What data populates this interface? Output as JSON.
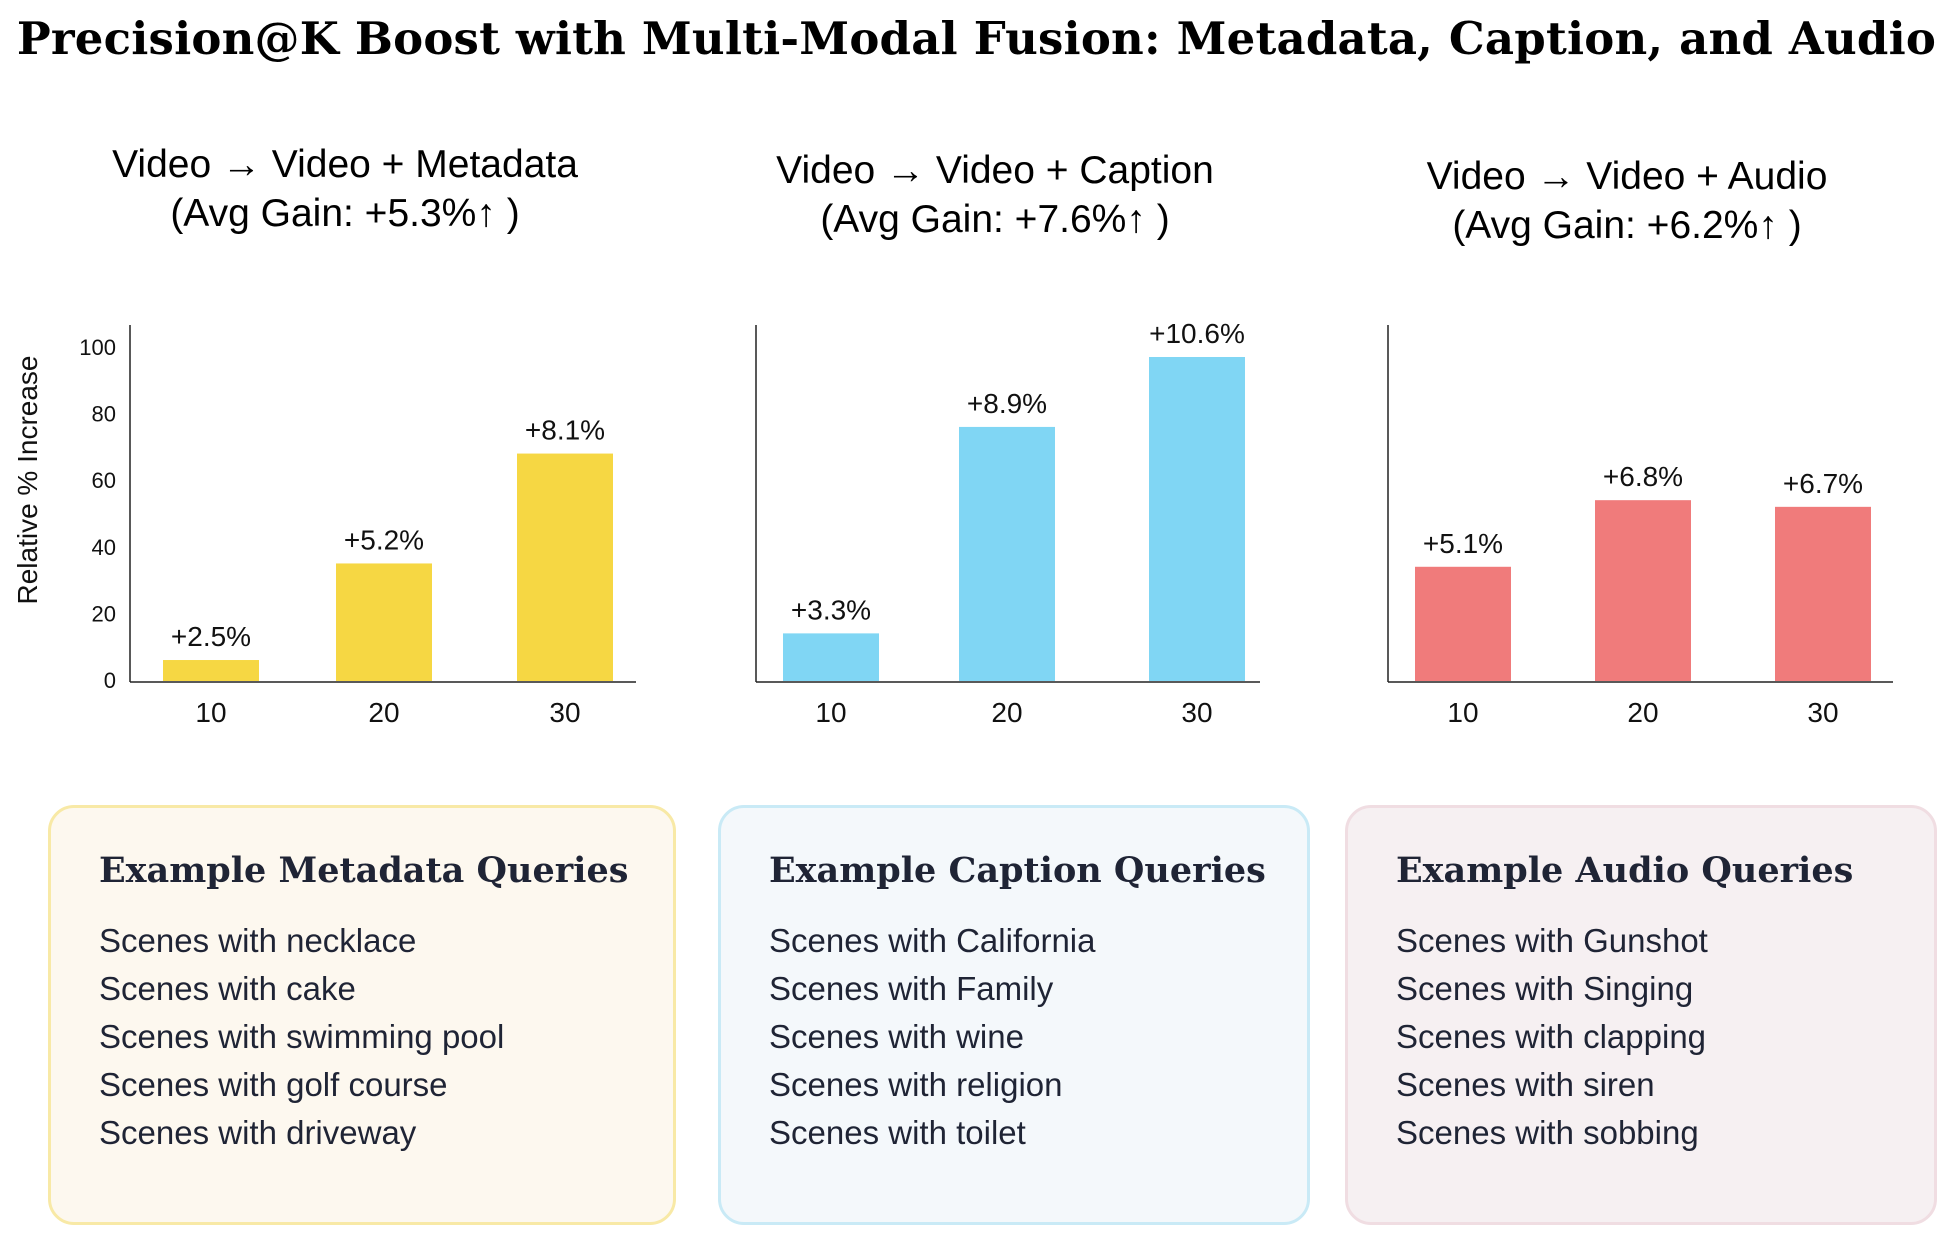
{
  "title": "Precision@K Boost with Multi-Modal Fusion: Metadata, Caption, and Audio",
  "chart_data": [
    {
      "type": "bar",
      "title_line1": "Video → Video + Metadata",
      "title_line2": "(Avg Gain: +5.3%↑ )",
      "ylabel": "Relative % Increase",
      "ylim": [
        0,
        100
      ],
      "yticks": [
        "0",
        "20",
        "40",
        "60",
        "80",
        "100"
      ],
      "categories": [
        "10",
        "20",
        "30"
      ],
      "values": [
        6,
        35,
        68
      ],
      "data_labels": [
        "+2.5%",
        "+5.2%",
        "+8.1%"
      ],
      "color": "#f6d743"
    },
    {
      "type": "bar",
      "title_line1": "Video → Video + Caption",
      "title_line2": "(Avg Gain: +7.6%↑ )",
      "ylim": [
        0,
        100
      ],
      "categories": [
        "10",
        "20",
        "30"
      ],
      "values": [
        14,
        76,
        97
      ],
      "data_labels": [
        "+3.3%",
        "+8.9%",
        "+10.6%"
      ],
      "color": "#80d6f4"
    },
    {
      "type": "bar",
      "title_line1": "Video → Video + Audio",
      "title_line2": "(Avg Gain: +6.2%↑ )",
      "ylim": [
        0,
        100
      ],
      "categories": [
        "10",
        "20",
        "30"
      ],
      "values": [
        34,
        54,
        52
      ],
      "data_labels": [
        "+5.1%",
        "+6.8%",
        "+6.7%"
      ],
      "color": "#f07b7b"
    }
  ],
  "examples": [
    {
      "heading": "Example Metadata Queries",
      "items": [
        "Scenes with necklace",
        "Scenes with cake",
        "Scenes with swimming pool",
        "Scenes with golf course",
        "Scenes with driveway"
      ],
      "background": "#fdf8ef",
      "border": "#f8e9a6"
    },
    {
      "heading": "Example Caption Queries",
      "items": [
        "Scenes with California",
        "Scenes with Family",
        "Scenes with wine",
        "Scenes with religion",
        "Scenes with toilet"
      ],
      "background": "#f4f8fb",
      "border": "#c9eaf6"
    },
    {
      "heading": "Example Audio Queries",
      "items": [
        "Scenes with Gunshot",
        "Scenes with Singing",
        "Scenes with clapping",
        "Scenes with siren",
        "Scenes with sobbing"
      ],
      "background": "#f6f0f2",
      "border": "#f0dde2"
    }
  ]
}
